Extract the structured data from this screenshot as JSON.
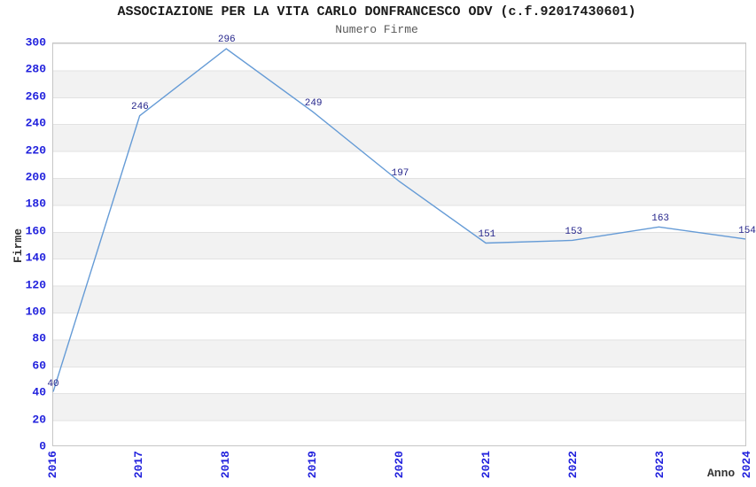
{
  "chart_data": {
    "type": "line",
    "title": "ASSOCIAZIONE PER LA VITA CARLO DONFRANCESCO ODV (c.f.92017430601)",
    "subtitle": "Numero Firme",
    "xlabel": "Anno",
    "ylabel": "Firme",
    "x": [
      "2016",
      "2017",
      "2018",
      "2019",
      "2020",
      "2021",
      "2022",
      "2023",
      "2024"
    ],
    "series": [
      {
        "name": "Numero Firme",
        "values": [
          40,
          246,
          296,
          249,
          197,
          151,
          153,
          163,
          154
        ]
      }
    ],
    "point_labels": [
      "40",
      "246",
      "296",
      "249",
      "197",
      "151",
      "153",
      "163",
      "154"
    ],
    "ylim": [
      0,
      300
    ],
    "ytick_step": 20,
    "legend": "none",
    "grid": "horizontal-bands"
  },
  "colors": {
    "title": "#1a1a1a",
    "subtitle": "#5a5a5a",
    "axis_label": "#333333",
    "tick_label": "#2222dd",
    "point_label": "#26268c",
    "line": "#659bd6",
    "band": "#f2f2f2",
    "grid_line": "#e2e2e2",
    "border": "#c6c6c6",
    "background": "#ffffff"
  }
}
